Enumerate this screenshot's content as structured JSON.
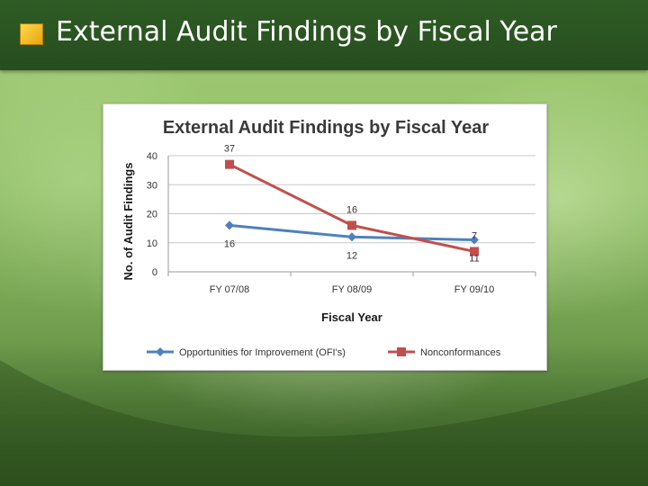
{
  "slide": {
    "title": "External Audit Findings by Fiscal Year"
  },
  "colors": {
    "title_bar": "#2f5c25",
    "bullet": "#f2c12e",
    "series_ofi": "#4f81bd",
    "series_nc": "#c0504d",
    "grid": "#c8c8c8"
  },
  "chart_data": {
    "type": "line",
    "title": "External Audit Findings by Fiscal Year",
    "xlabel": "Fiscal Year",
    "ylabel": "No. of Audit Findings",
    "categories": [
      "FY 07/08",
      "FY 08/09",
      "FY 09/10"
    ],
    "ylim": [
      0,
      40
    ],
    "yticks": [
      0,
      10,
      20,
      30,
      40
    ],
    "grid": true,
    "legend_position": "bottom",
    "series": [
      {
        "name": "Opportunities for Improvement (OFI's)",
        "values": [
          16,
          12,
          11
        ],
        "labels": [
          "16",
          "12",
          "11"
        ],
        "color": "#4f81bd",
        "marker": "diamond"
      },
      {
        "name": "Nonconformances",
        "values": [
          37,
          16,
          7
        ],
        "labels": [
          "37",
          "16",
          "7"
        ],
        "color": "#c0504d",
        "marker": "square"
      }
    ]
  }
}
